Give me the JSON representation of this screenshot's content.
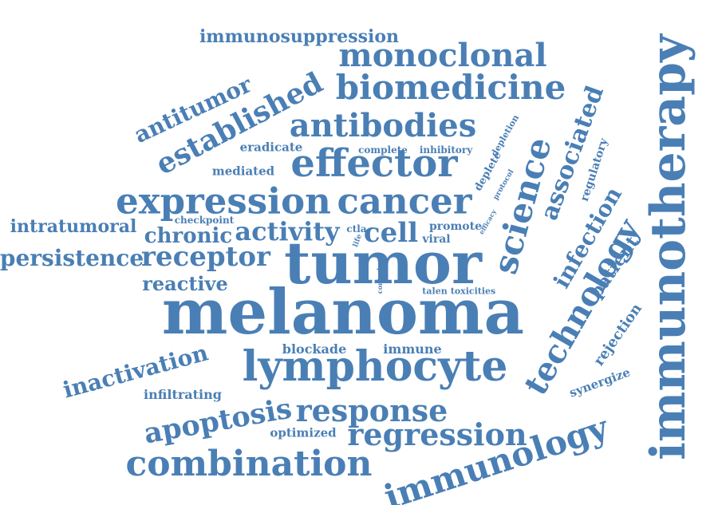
{
  "color": "#4a7fb5",
  "words": [
    {
      "text": "melanoma"
    },
    {
      "text": "tumor"
    },
    {
      "text": "immunotherapy"
    },
    {
      "text": "lymphocyte"
    },
    {
      "text": "effector"
    },
    {
      "text": "cancer"
    },
    {
      "text": "expression"
    },
    {
      "text": "science"
    },
    {
      "text": "technology"
    },
    {
      "text": "combination"
    },
    {
      "text": "immunology"
    },
    {
      "text": "biomedicine"
    },
    {
      "text": "antibodies"
    },
    {
      "text": "monoclonal"
    },
    {
      "text": "established"
    },
    {
      "text": "response"
    },
    {
      "text": "regression"
    },
    {
      "text": "apoptosis"
    },
    {
      "text": "receptor"
    },
    {
      "text": "persistence"
    },
    {
      "text": "activity"
    },
    {
      "text": "associated"
    },
    {
      "text": "infection"
    },
    {
      "text": "patient"
    },
    {
      "text": "antitumor"
    },
    {
      "text": "cell"
    },
    {
      "text": "chronic"
    },
    {
      "text": "inactivation"
    },
    {
      "text": "reactive"
    },
    {
      "text": "intratumoral"
    },
    {
      "text": "immunosuppression"
    },
    {
      "text": "rejection"
    },
    {
      "text": "regulatory"
    },
    {
      "text": "synergize"
    },
    {
      "text": "infiltrating"
    },
    {
      "text": "optimized"
    },
    {
      "text": "blockade"
    },
    {
      "text": "immune"
    },
    {
      "text": "eradicate"
    },
    {
      "text": "mediated"
    },
    {
      "text": "checkpoint"
    },
    {
      "text": "complete"
    },
    {
      "text": "inhibitory"
    },
    {
      "text": "promote"
    },
    {
      "text": "viral"
    },
    {
      "text": "deplete"
    },
    {
      "text": "depletion"
    },
    {
      "text": "protocol"
    },
    {
      "text": "efficacy"
    },
    {
      "text": "ctla"
    },
    {
      "text": "life"
    },
    {
      "text": "control"
    },
    {
      "text": "talen"
    },
    {
      "text": "toxicities"
    }
  ]
}
